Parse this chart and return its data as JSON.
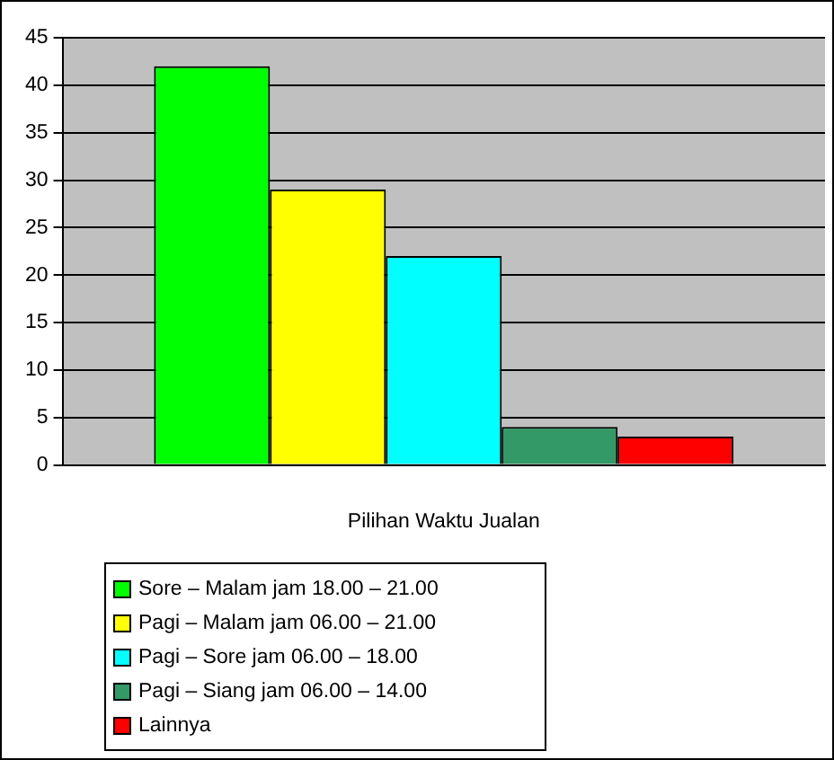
{
  "chart_data": {
    "type": "bar",
    "xlabel": "Pilihan Waktu Jualan",
    "categories": [
      null
    ],
    "series": [
      {
        "name": "Sore – Malam jam 18.00 – 21.00",
        "color": "#00ff00",
        "values": [
          42
        ]
      },
      {
        "name": "Pagi – Malam jam 06.00 – 21.00",
        "color": "#ffff00",
        "values": [
          29
        ]
      },
      {
        "name": "Pagi – Sore jam 06.00 – 18.00",
        "color": "#00ffff",
        "values": [
          22
        ]
      },
      {
        "name": "Pagi – Siang jam 06.00 – 14.00",
        "color": "#339966",
        "values": [
          4
        ]
      },
      {
        "name": "Lainnya",
        "color": "#ff0000",
        "values": [
          3
        ]
      }
    ],
    "ylim": [
      0,
      45
    ],
    "yticks": [
      0,
      5,
      10,
      15,
      20,
      25,
      30,
      35,
      40,
      45
    ],
    "grid": "y",
    "legend": "bottom"
  }
}
